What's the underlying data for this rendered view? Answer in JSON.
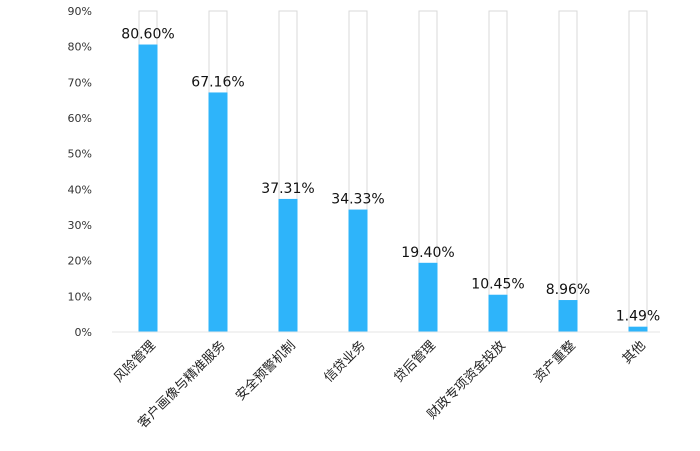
{
  "chart_data": {
    "type": "bar",
    "categories": [
      "风险管理",
      "客户画像与精准服务",
      "安全预警机制",
      "信贷业务",
      "贷后管理",
      "财政专项资金投放",
      "资产重整",
      "其他"
    ],
    "values": [
      80.6,
      67.16,
      37.31,
      34.33,
      19.4,
      10.45,
      8.96,
      1.49
    ],
    "data_labels": [
      "80.60%",
      "67.16%",
      "37.31%",
      "34.33%",
      "19.40%",
      "10.45%",
      "8.96%",
      "1.49%"
    ],
    "ylim": [
      0,
      90
    ],
    "yticks": [
      0,
      10,
      20,
      30,
      40,
      50,
      60,
      70,
      80,
      90
    ],
    "ytick_labels": [
      "0%",
      "10%",
      "20%",
      "30%",
      "40%",
      "50%",
      "60%",
      "70%",
      "80%",
      "90%"
    ],
    "bar_color": "#2EB4FA",
    "background_bar_color": "#FFFFFF",
    "background_bar_stroke": "#D9D9D9",
    "grid": false,
    "legend": "none"
  }
}
